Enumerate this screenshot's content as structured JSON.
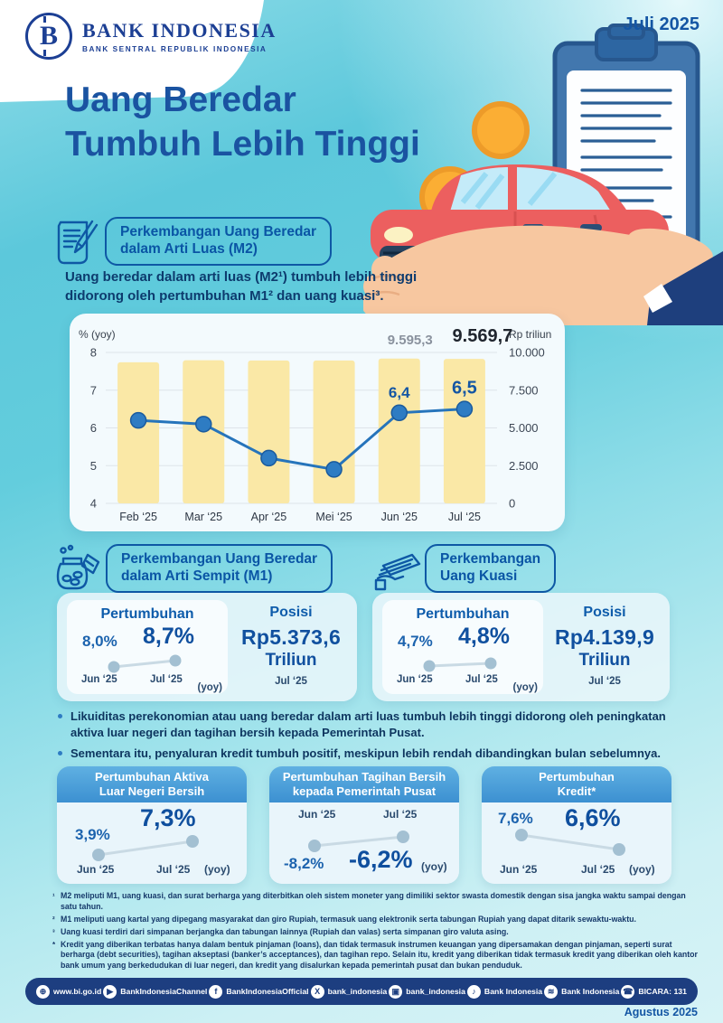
{
  "page": {
    "period": "Juli 2025",
    "published": "Agustus 2025"
  },
  "brand": {
    "name": "BANK INDONESIA",
    "tagline": "BANK SENTRAL REPUBLIK INDONESIA",
    "monogram": "B"
  },
  "title": {
    "line1": "Uang Beredar",
    "line2": "Tumbuh Lebih Tinggi"
  },
  "m2_section": {
    "header_line1": "Perkembangan Uang Beredar",
    "header_line2": "dalam Arti Luas (M2)",
    "intro_line1": "Uang beredar dalam arti luas (M2¹) tumbuh lebih tinggi",
    "intro_line2": "didorong oleh pertumbuhan M1² dan uang kuasi³."
  },
  "chart_data": {
    "type": "combo: bar (posisi M2, Rp triliun) + line (pertumbuhan M2, % yoy)",
    "categories": [
      "Feb ‘25",
      "Mar ‘25",
      "Apr ‘25",
      "Mei ‘25",
      "Jun ‘25",
      "Jul ‘25"
    ],
    "series": [
      {
        "name": "Posisi M2 (Rp triliun)",
        "type": "bar",
        "values": [
          9350,
          9480,
          9470,
          9470,
          9595.3,
          9569.7
        ],
        "labels": [
          null,
          null,
          null,
          null,
          "9.595,3",
          "9.569,7"
        ],
        "note": "first four bar values estimated from bar heights; last two labeled on chart"
      },
      {
        "name": "Pertumbuhan M2 (% yoy)",
        "type": "line",
        "values": [
          6.2,
          6.1,
          5.2,
          4.9,
          6.4,
          6.5
        ],
        "labels": [
          null,
          null,
          null,
          null,
          "6,4",
          "6,5"
        ]
      }
    ],
    "left_axis": {
      "label": "% (yoy)",
      "min": 4,
      "max": 8,
      "ticks": [
        "8",
        "7",
        "6",
        "5",
        "4"
      ]
    },
    "right_axis": {
      "label": "Rp triliun",
      "min": 0,
      "max": 10000,
      "ticks": [
        "10.000",
        "7.500",
        "5.000",
        "2.500",
        "0"
      ]
    },
    "grid": true,
    "legend": "none"
  },
  "m1_section": {
    "icon": "money-jar-icon",
    "header_line1": "Perkembangan Uang Beredar",
    "header_line2": "dalam Arti Sempit (M1)",
    "growth": {
      "title": "Pertumbuhan",
      "prev_value": "8,0%",
      "prev_label": "Jun ‘25",
      "curr_value": "8,7%",
      "curr_label": "Jul ‘25",
      "unit": "(yoy)"
    },
    "position": {
      "title": "Posisi",
      "value": "Rp5.373,6",
      "unit": "Triliun",
      "label": "Jul ‘25"
    }
  },
  "kuasi_section": {
    "icon": "hand-banknotes-icon",
    "header_line1": "Perkembangan",
    "header_line2": "Uang Kuasi",
    "growth": {
      "title": "Pertumbuhan",
      "prev_value": "4,7%",
      "prev_label": "Jun ‘25",
      "curr_value": "4,8%",
      "curr_label": "Jul ‘25",
      "unit": "(yoy)"
    },
    "position": {
      "title": "Posisi",
      "value": "Rp4.139,9",
      "unit": "Triliun",
      "label": "Jul ‘25"
    }
  },
  "bullets": [
    "Likuiditas perekonomian atau uang beredar dalam arti luas tumbuh lebih tinggi didorong oleh peningkatan aktiva luar negeri dan tagihan bersih kepada Pemerintah Pusat.",
    "Sementara itu, penyaluran kredit tumbuh positif, meskipun lebih rendah dibandingkan bulan sebelumnya."
  ],
  "metric_boxes": [
    {
      "title_line1": "Pertumbuhan Aktiva",
      "title_line2": "Luar Negeri Bersih",
      "prev_value": "3,9%",
      "prev_label": "Jun ‘25",
      "curr_value": "7,3%",
      "curr_label": "Jul ‘25",
      "unit": "(yoy)",
      "trend": "up"
    },
    {
      "title_line1": "Pertumbuhan Tagihan Bersih",
      "title_line2": "kepada Pemerintah Pusat",
      "prev_value": "-8,2%",
      "prev_label": "Jun ‘25",
      "curr_value": "-6,2%",
      "curr_label": "Jul ‘25",
      "unit": "(yoy)",
      "trend": "up"
    },
    {
      "title_line1": "Pertumbuhan",
      "title_line2": "Kredit*",
      "prev_value": "7,6%",
      "prev_label": "Jun ‘25",
      "curr_value": "6,6%",
      "curr_label": "Jul ‘25",
      "unit": "(yoy)",
      "trend": "down"
    }
  ],
  "footnotes": [
    {
      "marker": "¹",
      "text": "M2 meliputi M1, uang kuasi, dan surat berharga yang diterbitkan oleh sistem moneter yang dimiliki sektor swasta domestik dengan sisa jangka waktu sampai dengan satu tahun."
    },
    {
      "marker": "²",
      "text": "M1 meliputi uang kartal yang dipegang masyarakat dan giro Rupiah, termasuk uang elektronik serta tabungan Rupiah yang dapat ditarik sewaktu-waktu."
    },
    {
      "marker": "³",
      "text": "Uang kuasi terdiri dari simpanan berjangka dan tabungan lainnya (Rupiah dan valas) serta simpanan giro valuta asing."
    },
    {
      "marker": "*",
      "text": "Kredit yang diberikan terbatas hanya dalam bentuk pinjaman (loans), dan tidak termasuk instrumen keuangan yang dipersamakan dengan pinjaman, seperti surat berharga (debt securities), tagihan akseptasi (banker’s acceptances), dan tagihan repo. Selain itu, kredit yang diberikan tidak termasuk kredit yang diberikan oleh kantor bank umum yang berkedudukan di luar negeri, dan kredit yang disalurkan kepada pemerintah pusat dan bukan penduduk."
    }
  ],
  "footer": {
    "items": [
      {
        "icon": "bi-globe-icon",
        "label": "www.bi.go.id"
      },
      {
        "icon": "youtube-icon",
        "label": "BankIndonesiaChannel"
      },
      {
        "icon": "facebook-icon",
        "label": "BankIndonesiaOfficial"
      },
      {
        "icon": "x-icon",
        "label": "bank_indonesia"
      },
      {
        "icon": "instagram-icon",
        "label": "bank_indonesia"
      },
      {
        "icon": "tiktok-icon",
        "label": "Bank Indonesia"
      },
      {
        "icon": "spotify-icon",
        "label": "Bank Indonesia"
      },
      {
        "icon": "bicara-icon",
        "label": "BICARA: 131"
      }
    ]
  },
  "colors": {
    "primary_blue": "#1456a4",
    "section_outline_blue": "#0e58a5",
    "header_band_blue": "#3c90d1",
    "bar_yellow": "#fae8a6",
    "line_blue": "#2674bb",
    "footer_navy": "#1d3e80",
    "bg_cyan": "#63cddd"
  }
}
